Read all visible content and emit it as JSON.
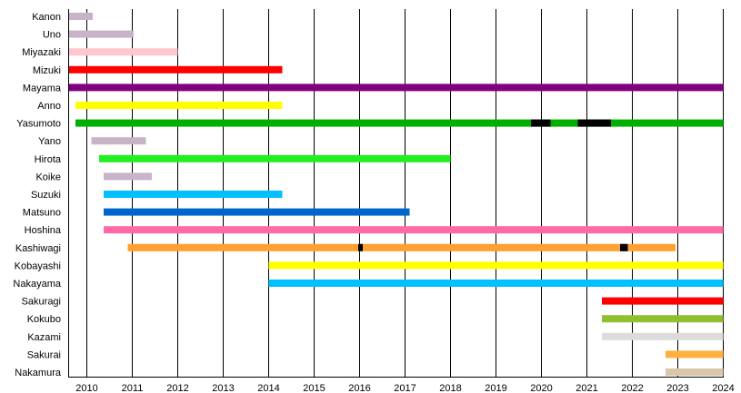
{
  "chart_data": {
    "type": "timeline",
    "title": "",
    "xlabel": "",
    "ylabel": "",
    "xlim": [
      2009.6,
      2024
    ],
    "x_ticks": [
      "2010",
      "2011",
      "2012",
      "2013",
      "2014",
      "2015",
      "2016",
      "2017",
      "2018",
      "2019",
      "2020",
      "2021",
      "2022",
      "2023",
      "2024"
    ],
    "grid": "vertical",
    "break_color": "#000000",
    "rows": [
      {
        "name": "Kanon",
        "color": "#c8b4c8",
        "start": 2009.6,
        "end": 2010.13,
        "breaks": []
      },
      {
        "name": "Uno",
        "color": "#c8b4c8",
        "start": 2009.6,
        "end": 2011.03,
        "breaks": []
      },
      {
        "name": "Miyazaki",
        "color": "#ffc8d0",
        "start": 2009.6,
        "end": 2012.0,
        "breaks": []
      },
      {
        "name": "Mizuki",
        "color": "#ff0000",
        "start": 2009.6,
        "end": 2014.3,
        "breaks": []
      },
      {
        "name": "Mayama",
        "color": "#800080",
        "start": 2009.6,
        "end": 2024.0,
        "breaks": []
      },
      {
        "name": "Anno",
        "color": "#ffff00",
        "start": 2009.75,
        "end": 2014.3,
        "breaks": []
      },
      {
        "name": "Yasumoto",
        "color": "#00b000",
        "start": 2009.75,
        "end": 2024.0,
        "breaks": [
          [
            2019.77,
            2020.2
          ],
          [
            2020.8,
            2021.53
          ]
        ]
      },
      {
        "name": "Yano",
        "color": "#c8b4c8",
        "start": 2010.1,
        "end": 2011.3,
        "breaks": []
      },
      {
        "name": "Hirota",
        "color": "#22ee22",
        "start": 2010.27,
        "end": 2018.0,
        "breaks": []
      },
      {
        "name": "Koike",
        "color": "#c8b4c8",
        "start": 2010.37,
        "end": 2011.43,
        "breaks": []
      },
      {
        "name": "Suzuki",
        "color": "#00c0ff",
        "start": 2010.37,
        "end": 2014.3,
        "breaks": []
      },
      {
        "name": "Matsuno",
        "color": "#0066cc",
        "start": 2010.37,
        "end": 2017.1,
        "breaks": []
      },
      {
        "name": "Hoshina",
        "color": "#ff69a8",
        "start": 2010.37,
        "end": 2024.0,
        "breaks": []
      },
      {
        "name": "Kashiwagi",
        "color": "#ffa030",
        "start": 2010.9,
        "end": 2022.95,
        "breaks": [
          [
            2015.97,
            2016.07
          ],
          [
            2021.73,
            2021.9
          ]
        ]
      },
      {
        "name": "Kobayashi",
        "color": "#ffff00",
        "start": 2014.0,
        "end": 2024.0,
        "breaks": []
      },
      {
        "name": "Nakayama",
        "color": "#00c0ff",
        "start": 2014.0,
        "end": 2024.0,
        "breaks": []
      },
      {
        "name": "Sakuragi",
        "color": "#ff0000",
        "start": 2021.33,
        "end": 2024.0,
        "breaks": []
      },
      {
        "name": "Kokubo",
        "color": "#90c030",
        "start": 2021.33,
        "end": 2024.0,
        "breaks": []
      },
      {
        "name": "Kazami",
        "color": "#dcdcdc",
        "start": 2021.33,
        "end": 2024.0,
        "breaks": []
      },
      {
        "name": "Sakurai",
        "color": "#ffb040",
        "start": 2022.73,
        "end": 2024.0,
        "breaks": []
      },
      {
        "name": "Nakamura",
        "color": "#d8c8a8",
        "start": 2022.73,
        "end": 2024.0,
        "breaks": []
      }
    ]
  }
}
